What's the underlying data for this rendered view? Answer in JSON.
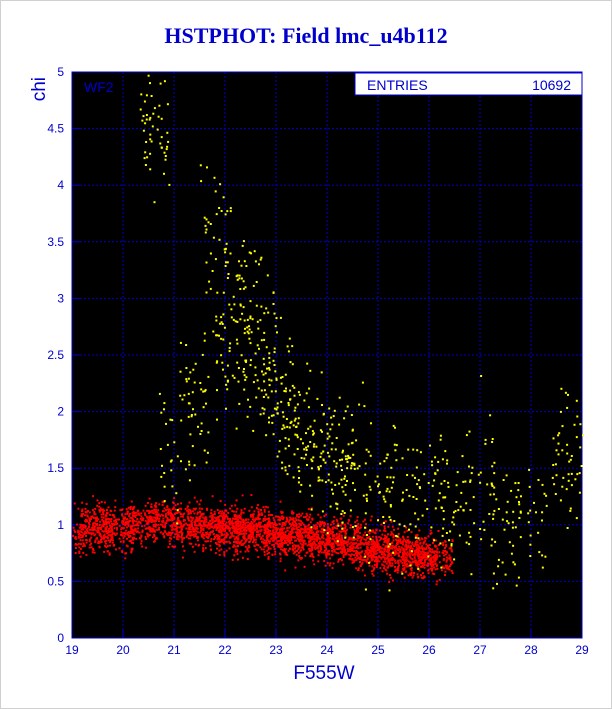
{
  "chart_data": {
    "type": "scatter",
    "title": "HSTPHOT: Field lmc_u4b112",
    "xlabel": "F555W",
    "ylabel": "chi",
    "xlim": [
      19,
      29
    ],
    "ylim": [
      0,
      5
    ],
    "xticks": [
      "19",
      "20",
      "21",
      "22",
      "23",
      "24",
      "25",
      "26",
      "27",
      "28",
      "29"
    ],
    "yticks": [
      "0",
      "0.5",
      "1",
      "1.5",
      "2",
      "2.5",
      "3",
      "3.5",
      "4",
      "4.5",
      "5"
    ],
    "grid": true,
    "panel_label": "WF2",
    "stats_box": {
      "label": "ENTRIES",
      "value": "10692",
      "position": "top-right"
    },
    "series": [
      {
        "color": "#ff0000",
        "description_of_distribution": "dense band",
        "x": [
          19.2,
          19.5,
          19.9,
          20.3,
          20.8,
          21.2,
          21.6,
          21.9,
          22.2,
          22.5,
          22.8,
          23.1,
          23.4,
          23.7,
          24.0,
          24.3,
          24.6,
          24.9,
          25.2,
          25.5,
          25.8,
          26.1
        ],
        "y": [
          0.95,
          1.0,
          0.98,
          1.02,
          1.05,
          1.0,
          1.0,
          0.98,
          0.97,
          0.96,
          0.95,
          0.93,
          0.92,
          0.9,
          0.88,
          0.86,
          0.83,
          0.8,
          0.78,
          0.76,
          0.75,
          0.72
        ]
      },
      {
        "color": "#ffff00",
        "x": [
          20.6,
          21.0,
          21.4,
          21.8,
          22.1,
          22.4,
          22.7,
          23.0,
          23.3,
          23.6,
          23.9,
          24.2,
          24.5,
          25.0,
          25.5,
          26.0,
          26.5,
          27.0,
          27.5,
          28.0,
          28.7
        ],
        "y": [
          4.6,
          1.6,
          2.1,
          3.6,
          2.6,
          3.0,
          2.4,
          2.2,
          1.9,
          1.8,
          1.6,
          1.5,
          1.4,
          1.35,
          1.25,
          1.2,
          1.25,
          1.3,
          1.05,
          1.0,
          1.6
        ]
      }
    ]
  }
}
